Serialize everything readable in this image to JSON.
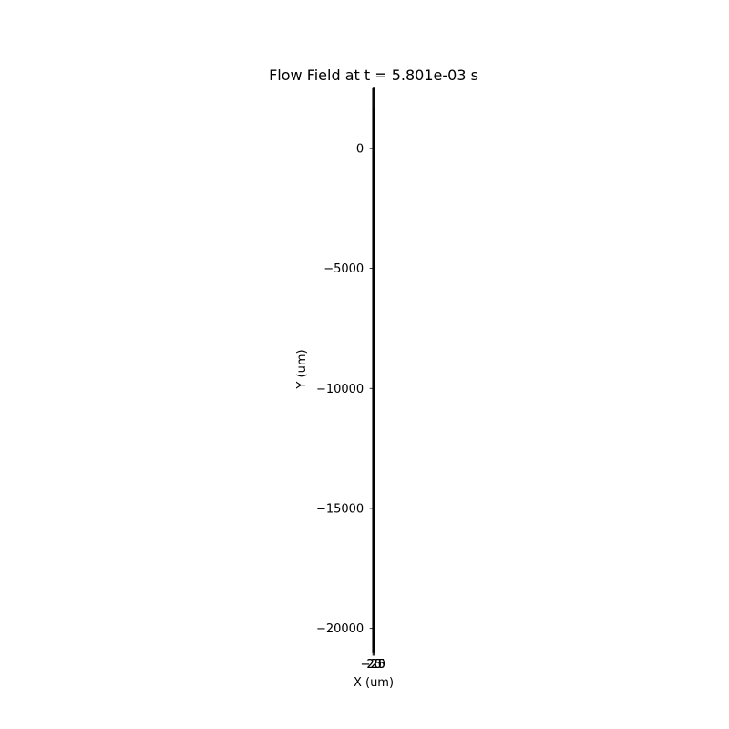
{
  "chart_data": {
    "type": "line",
    "title": "Flow Field at t = 5.801e-03 s",
    "xlabel": "X (um)",
    "ylabel": "Y (um)",
    "xlim": [
      -25,
      25
    ],
    "ylim": [
      -21000,
      2500
    ],
    "xticks": [
      -25,
      -20,
      20,
      25
    ],
    "xtick_labels": [
      "−25",
      "−20",
      "20",
      "25"
    ],
    "yticks": [
      0,
      -5000,
      -10000,
      -15000,
      -20000
    ],
    "ytick_labels": [
      "0",
      "−5000",
      "−10000",
      "−15000",
      "−20000"
    ],
    "grid": false,
    "equal_aspect": true,
    "series": [
      {
        "x": [
          -25,
          -25,
          25,
          25,
          -25
        ],
        "y": [
          2500,
          -21000,
          -21000,
          2500,
          2500
        ],
        "color": "#000000"
      },
      {
        "x": [
          0,
          0
        ],
        "y": [
          1650,
          -20950
        ],
        "color": "#000000"
      }
    ]
  }
}
